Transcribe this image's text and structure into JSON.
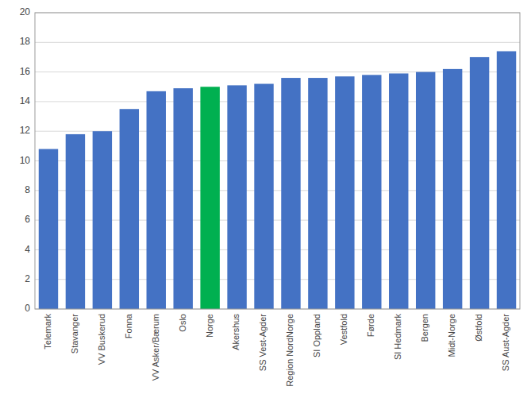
{
  "chart_data": {
    "type": "bar",
    "categories": [
      "Telemark",
      "Stavanger",
      "VV Buskerud",
      "Fonna",
      "VV Asker/Bærum",
      "Oslo",
      "Norge",
      "Akershus",
      "SS Vest-Agder",
      "Region NordNorge",
      "SI Oppland",
      "Vestfold",
      "Førde",
      "SI Hedmark",
      "Bergen",
      "Midt-Norge",
      "Østfold",
      "SS Aust-Agder"
    ],
    "values": [
      10.8,
      11.8,
      12.0,
      13.5,
      14.7,
      14.9,
      15.0,
      15.1,
      15.2,
      15.6,
      15.6,
      15.7,
      15.8,
      15.9,
      16.0,
      16.2,
      17.0,
      17.4
    ],
    "colors": [
      "#4472C4",
      "#4472C4",
      "#4472C4",
      "#4472C4",
      "#4472C4",
      "#4472C4",
      "#00B050",
      "#4472C4",
      "#4472C4",
      "#4472C4",
      "#4472C4",
      "#4472C4",
      "#4472C4",
      "#4472C4",
      "#4472C4",
      "#4472C4",
      "#4472C4",
      "#4472C4"
    ],
    "ylim": [
      0,
      20
    ],
    "yticks": [
      0,
      2,
      4,
      6,
      8,
      10,
      12,
      14,
      16,
      18,
      20
    ],
    "grid": true
  }
}
